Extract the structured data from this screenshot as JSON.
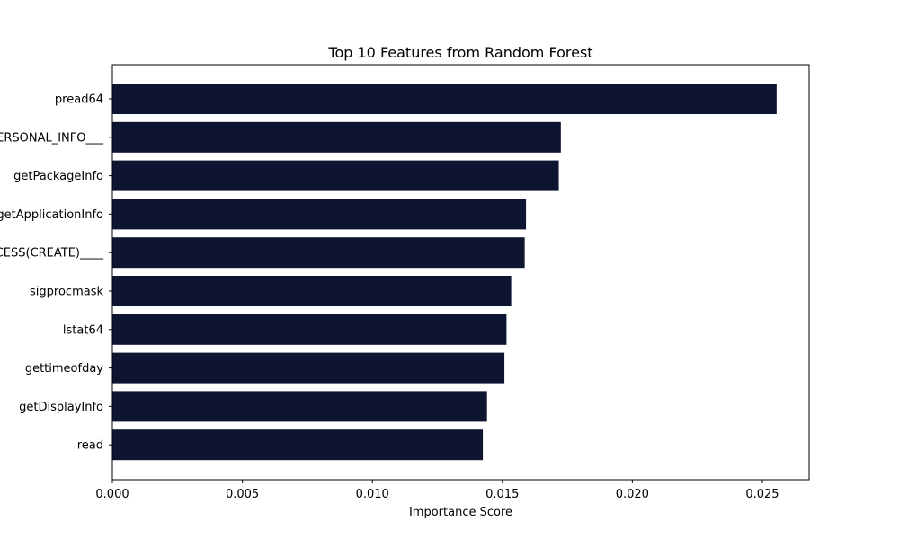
{
  "chart_data": {
    "type": "bar",
    "orientation": "horizontal",
    "title": "Top 10 Features from Random Forest",
    "xlabel": "Importance Score",
    "ylabel": "",
    "xlim": [
      0,
      0.0268
    ],
    "xticks": [
      0.0,
      0.005,
      0.01,
      0.015,
      0.02,
      0.025
    ],
    "xtick_labels": [
      "0.000",
      "0.005",
      "0.010",
      "0.015",
      "0.020",
      "0.025"
    ],
    "grid": false,
    "bar_color": "#0e1530",
    "categories": [
      "pread64",
      "___PERSONAL_INFO___",
      "getPackageInfo",
      "getApplicationInfo",
      "___FS_ACCESS(CREATE)____",
      "sigprocmask",
      "lstat64",
      "gettimeofday",
      "getDisplayInfo",
      "read"
    ],
    "values": [
      0.02555,
      0.01725,
      0.01717,
      0.01591,
      0.01586,
      0.01534,
      0.01516,
      0.01508,
      0.01441,
      0.01425
    ]
  }
}
